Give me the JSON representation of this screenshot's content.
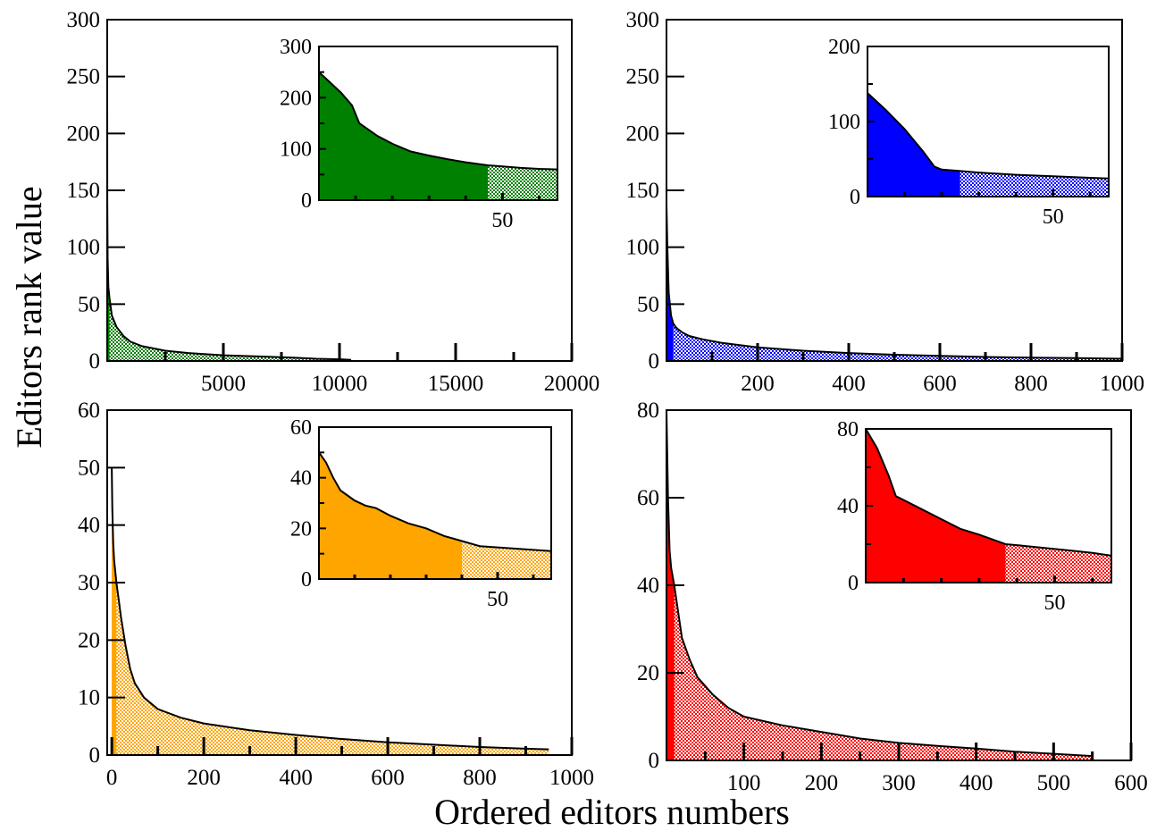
{
  "figure": {
    "ylabel": "Editors rank value",
    "xlabel": "Ordered editors numbers"
  },
  "chart_data": [
    {
      "type": "area",
      "color": "#008000",
      "xlim": [
        0,
        20000
      ],
      "ylim": [
        0,
        300
      ],
      "xticks": [
        5000,
        10000,
        15000,
        20000
      ],
      "yticks": [
        0,
        50,
        100,
        150,
        200,
        250,
        300
      ],
      "x_minor_ticks": [
        2500,
        7500,
        12500,
        17500
      ],
      "x": [
        0,
        5,
        20,
        50,
        100,
        200,
        400,
        700,
        1000,
        1500,
        2500,
        3500,
        5000,
        6500,
        8000,
        9000,
        10000,
        10500
      ],
      "y": [
        250,
        140,
        90,
        65,
        55,
        40,
        30,
        22,
        17,
        13,
        9,
        7,
        5,
        4,
        3,
        2,
        1.5,
        1
      ],
      "inset": {
        "xlim": [
          0,
          65
        ],
        "ylim": [
          0,
          300
        ],
        "xticks": [
          50
        ],
        "yticks": [
          0,
          100,
          200,
          300
        ],
        "x_minor_ticks": [
          10,
          20,
          30,
          40,
          60
        ],
        "y_minor_ticks": [
          50,
          150,
          250
        ],
        "highlight_until": 46,
        "x": [
          0,
          3,
          6,
          9,
          11,
          13,
          16,
          20,
          25,
          30,
          35,
          40,
          46,
          50,
          55,
          60,
          65
        ],
        "y": [
          250,
          230,
          210,
          185,
          150,
          140,
          125,
          110,
          95,
          87,
          80,
          74,
          68,
          66,
          63,
          61,
          60
        ]
      }
    },
    {
      "type": "area",
      "color": "#0000ff",
      "xlim": [
        0,
        1000
      ],
      "ylim": [
        0,
        300
      ],
      "xticks": [
        200,
        400,
        600,
        800,
        1000
      ],
      "yticks": [
        0,
        50,
        100,
        150,
        200,
        250,
        300
      ],
      "x_minor_ticks": [
        100,
        300,
        500,
        700,
        900
      ],
      "x": [
        0,
        2,
        5,
        10,
        15,
        20,
        25,
        35,
        50,
        80,
        120,
        200,
        300,
        400,
        500,
        600,
        700,
        800,
        900,
        1000
      ],
      "y": [
        138,
        100,
        60,
        40,
        33,
        30,
        28,
        25,
        22,
        19,
        16,
        12,
        9,
        7,
        5.5,
        4.5,
        3.5,
        3,
        2.5,
        2
      ],
      "inset": {
        "xlim": [
          0,
          65
        ],
        "ylim": [
          0,
          200
        ],
        "xticks": [
          50
        ],
        "yticks": [
          0,
          100,
          200
        ],
        "x_minor_ticks": [
          10,
          20,
          30,
          40,
          60
        ],
        "y_minor_ticks": [
          50,
          150
        ],
        "highlight_until": 25,
        "x": [
          0,
          5,
          10,
          15,
          18,
          20,
          25,
          30,
          40,
          50,
          60,
          65
        ],
        "y": [
          138,
          115,
          90,
          60,
          40,
          36,
          34,
          32,
          29,
          27,
          25,
          24
        ]
      }
    },
    {
      "type": "area",
      "color": "#ffa500",
      "xlim": [
        -10,
        1000
      ],
      "ylim": [
        0,
        60
      ],
      "xticks": [
        0,
        200,
        400,
        600,
        800,
        1000
      ],
      "yticks": [
        0,
        10,
        20,
        30,
        40,
        50,
        60
      ],
      "x_minor_ticks": [
        100,
        300,
        500,
        700,
        900
      ],
      "x": [
        0,
        1,
        3,
        5,
        10,
        15,
        20,
        30,
        40,
        50,
        70,
        100,
        150,
        200,
        300,
        400,
        500,
        600,
        700,
        800,
        900,
        950
      ],
      "y": [
        50,
        43,
        37,
        34,
        30,
        27,
        24,
        19,
        15,
        12.5,
        10,
        8,
        6.5,
        5.5,
        4.3,
        3.5,
        2.8,
        2.2,
        1.8,
        1.4,
        1.1,
        1
      ],
      "inset": {
        "xlim": [
          0,
          65
        ],
        "ylim": [
          0,
          60
        ],
        "xticks": [
          50
        ],
        "yticks": [
          0,
          20,
          40,
          60
        ],
        "x_minor_ticks": [
          10,
          20,
          30,
          40,
          60
        ],
        "y_minor_ticks": [
          10,
          30,
          50
        ],
        "highlight_until": 40,
        "x": [
          0,
          2,
          4,
          6,
          8,
          10,
          13,
          16,
          20,
          25,
          30,
          35,
          40,
          45,
          50,
          55,
          60,
          65
        ],
        "y": [
          50,
          46,
          40,
          35,
          33,
          31,
          29,
          28,
          25,
          22,
          20,
          17,
          15,
          13,
          12.5,
          12,
          11.5,
          11
        ]
      }
    },
    {
      "type": "area",
      "color": "#ff0000",
      "xlim": [
        0,
        600
      ],
      "ylim": [
        0,
        80
      ],
      "xticks": [
        100,
        200,
        300,
        400,
        500,
        600
      ],
      "yticks": [
        0,
        20,
        40,
        60,
        80
      ],
      "x_minor_ticks": [
        50,
        150,
        250,
        350,
        450,
        550
      ],
      "x": [
        0,
        2,
        4,
        6,
        10,
        15,
        20,
        30,
        40,
        60,
        80,
        100,
        150,
        200,
        250,
        300,
        350,
        400,
        450,
        500,
        550
      ],
      "y": [
        80,
        60,
        48,
        44,
        40,
        34,
        28,
        23,
        19,
        15,
        12,
        10,
        8,
        6.5,
        5,
        4,
        3.3,
        2.7,
        2,
        1.5,
        1
      ],
      "inset": {
        "xlim": [
          0,
          65
        ],
        "ylim": [
          0,
          80
        ],
        "xticks": [
          50
        ],
        "yticks": [
          0,
          40,
          80
        ],
        "x_minor_ticks": [
          10,
          20,
          30,
          40,
          60
        ],
        "y_minor_ticks": [
          20,
          60
        ],
        "highlight_until": 37,
        "x": [
          0,
          3,
          6,
          8,
          10,
          15,
          20,
          25,
          30,
          37,
          40,
          45,
          50,
          55,
          60,
          65
        ],
        "y": [
          80,
          70,
          56,
          45,
          43,
          38,
          33,
          28,
          25,
          20,
          19.5,
          18.5,
          17.5,
          16.5,
          15.5,
          14
        ]
      }
    }
  ]
}
